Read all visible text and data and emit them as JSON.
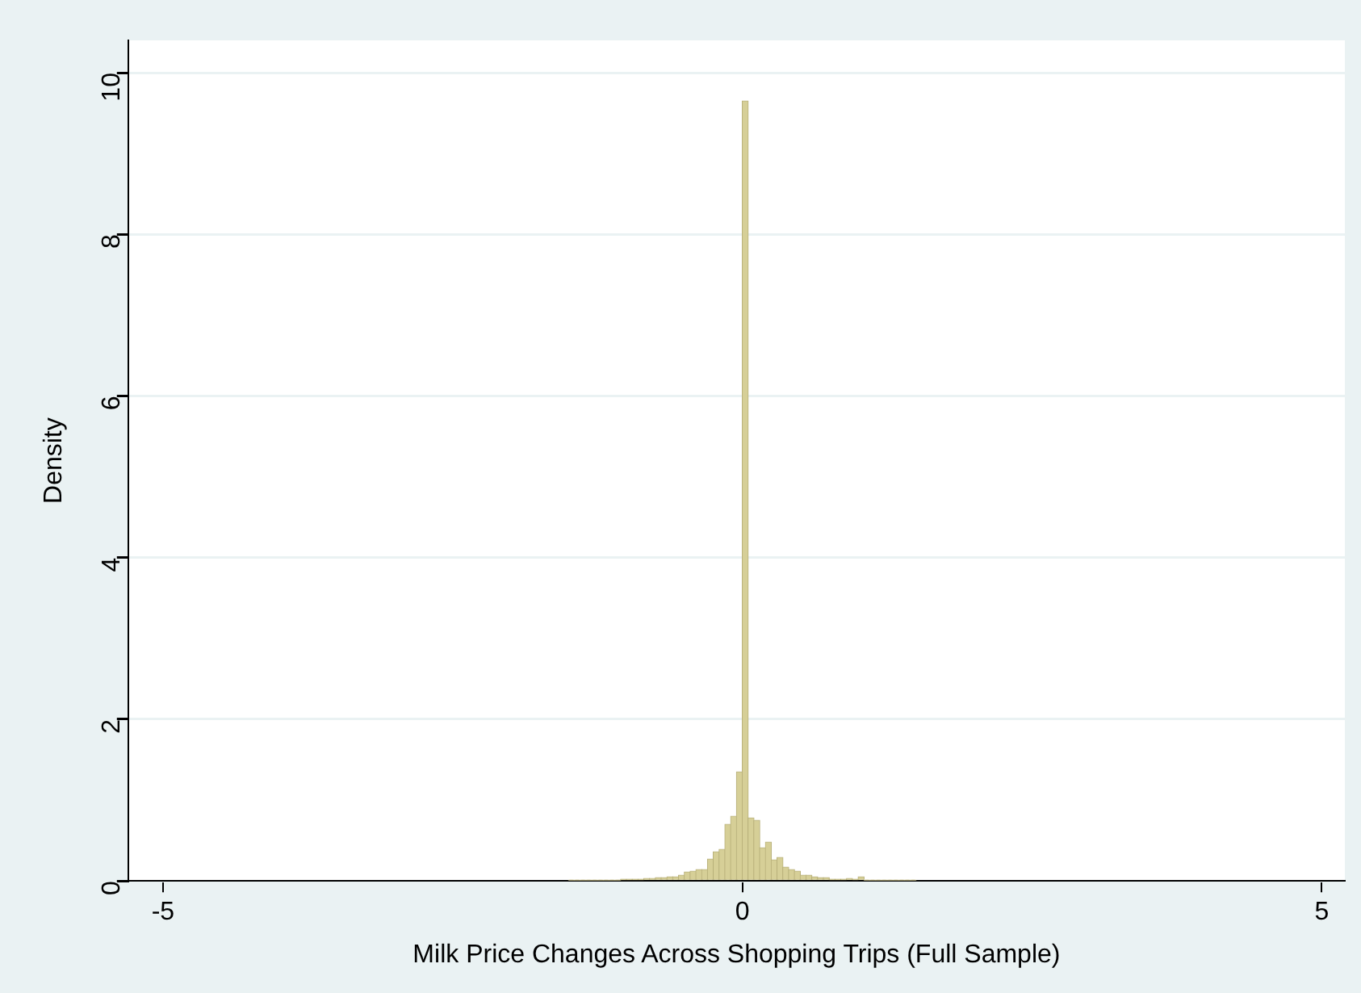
{
  "chart_data": {
    "type": "histogram",
    "xlabel": "Milk Price Changes Across Shopping Trips (Full Sample)",
    "ylabel": "Density",
    "bins": [
      -1.5,
      -1.45,
      -1.4,
      -1.35,
      -1.3,
      -1.25,
      -1.2,
      -1.15,
      -1.1,
      -1.05,
      -1.0,
      -0.95,
      -0.9,
      -0.85,
      -0.8,
      -0.75,
      -0.7,
      -0.65,
      -0.6,
      -0.55,
      -0.5,
      -0.45,
      -0.4,
      -0.35,
      -0.3,
      -0.25,
      -0.2,
      -0.15,
      -0.1,
      -0.05,
      0,
      0.05,
      0.1,
      0.15,
      0.2,
      0.25,
      0.3,
      0.35,
      0.4,
      0.45,
      0.5,
      0.55,
      0.6,
      0.65,
      0.7,
      0.75,
      0.8,
      0.85,
      0.9,
      0.95,
      1.0,
      1.05,
      1.1,
      1.15,
      1.2,
      1.25,
      1.3,
      1.35,
      1.4,
      1.45,
      1.5
    ],
    "values": [
      0.01,
      0.01,
      0.01,
      0.01,
      0.01,
      0.01,
      0.01,
      0.01,
      0.01,
      0.02,
      0.02,
      0.02,
      0.02,
      0.03,
      0.03,
      0.04,
      0.04,
      0.05,
      0.05,
      0.07,
      0.11,
      0.12,
      0.14,
      0.14,
      0.27,
      0.36,
      0.39,
      0.7,
      0.8,
      1.35,
      9.65,
      0.78,
      0.75,
      0.41,
      0.48,
      0.26,
      0.29,
      0.17,
      0.14,
      0.12,
      0.07,
      0.07,
      0.05,
      0.04,
      0.04,
      0.02,
      0.02,
      0.02,
      0.03,
      0.02,
      0.05,
      0.01,
      0.01,
      0.01,
      0.01,
      0.01,
      0.01,
      0.01,
      0.01,
      0.01
    ],
    "color": "#d6cf97",
    "xlim": [
      -5.3,
      5.2
    ],
    "xticks": [
      -5,
      0,
      5
    ],
    "ylim": [
      0,
      10.4
    ],
    "yticks": [
      0,
      2,
      4,
      6,
      8,
      10
    ],
    "grid": "y"
  }
}
